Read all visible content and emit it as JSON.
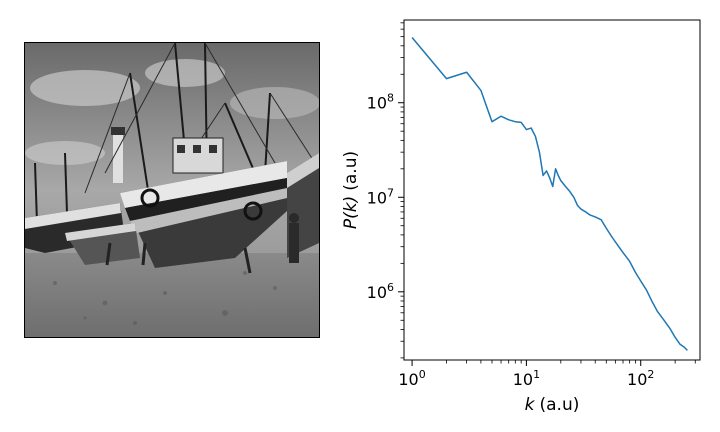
{
  "image_panel": {
    "description_icon": "harbor-boats-photo",
    "grayscale": true
  },
  "chart_data": {
    "type": "line",
    "xscale": "log",
    "yscale": "log",
    "xlim": [
      0.85,
      330
    ],
    "ylim": [
      190000,
      750000000
    ],
    "x_ticks": [
      {
        "value": 1,
        "base": "10",
        "exp": "0"
      },
      {
        "value": 10,
        "base": "10",
        "exp": "1"
      },
      {
        "value": 100,
        "base": "10",
        "exp": "2"
      }
    ],
    "y_ticks": [
      {
        "value": 1000000,
        "base": "10",
        "exp": "6"
      },
      {
        "value": 10000000,
        "base": "10",
        "exp": "7"
      },
      {
        "value": 100000000,
        "base": "10",
        "exp": "8"
      }
    ],
    "xlabel": {
      "var": "k",
      "unit": "(a.u)"
    },
    "ylabel": {
      "var": "P(k)",
      "unit": "(a.u)"
    },
    "line_color": "#1f77b4",
    "series": [
      {
        "x": [
          1,
          2,
          3,
          4,
          5,
          6,
          7,
          8,
          9,
          10,
          11,
          12,
          13,
          14,
          15,
          16,
          17,
          18,
          19,
          20,
          22,
          24,
          26,
          28,
          30,
          33,
          36,
          40,
          45,
          50,
          56,
          63,
          70,
          80,
          90,
          100,
          112,
          125,
          140,
          160,
          180,
          200,
          220,
          240,
          256
        ],
        "y": [
          490000000,
          180000000,
          210000000,
          135000000,
          63000000,
          72000000,
          66000000,
          63000000,
          62000000,
          52000000,
          54000000,
          44000000,
          30000000,
          17000000,
          19000000,
          16000000,
          13000000,
          20000000,
          17000000,
          15000000,
          13000000,
          11500000,
          10000000,
          8200000,
          7500000,
          7000000,
          6500000,
          6200000,
          5800000,
          4700000,
          3800000,
          3100000,
          2600000,
          2100000,
          1600000,
          1300000,
          1050000,
          800000,
          620000,
          500000,
          410000,
          330000,
          280000,
          260000,
          240000
        ]
      }
    ]
  }
}
